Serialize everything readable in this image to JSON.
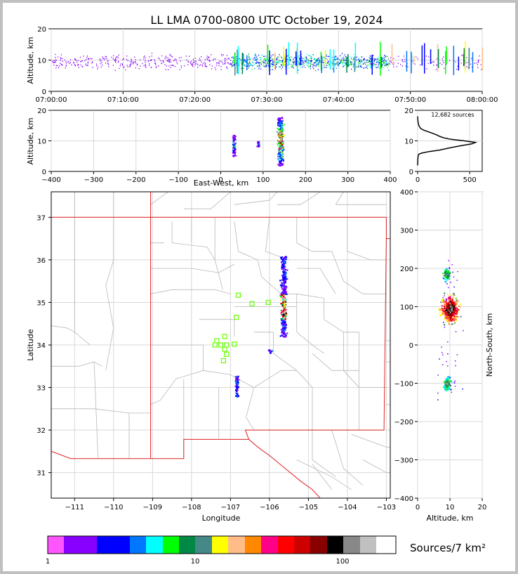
{
  "title": "LL LMA 0700-0800 UTC October 19, 2024",
  "colors": {
    "panel_border": "#000000",
    "grid": "#d8d8d8",
    "state_border": "#e02020",
    "county_line": "#b8b8b8",
    "station": "#66ff00",
    "histogram_line": "#000000"
  },
  "chart_data": [
    {
      "id": "time_height",
      "type": "scatter",
      "ylabel": "Altitude, km",
      "xlabel": "",
      "ylim": [
        0,
        20
      ],
      "yticks": [
        "0",
        "10",
        "20"
      ],
      "xtick_labels": [
        "07:00:00",
        "07:10:00",
        "07:20:00",
        "07:30:00",
        "07:40:00",
        "07:50:00",
        "08:00:00"
      ],
      "xlim_minutes": [
        0,
        60
      ],
      "grid": true,
      "note_density": "sources 0700-0800 UTC; densest 07:25-07:47 at 7-14 km; sparse bursts 07:48-08:00"
    },
    {
      "id": "east_west_height",
      "type": "scatter",
      "xlabel": "East-West, km",
      "ylabel": "Altitude, km",
      "xlim": [
        -400,
        400
      ],
      "ylim": [
        0,
        20
      ],
      "xticks": [
        "−400",
        "−300",
        "−200",
        "−100",
        "0",
        "100",
        "200",
        "300",
        "400"
      ],
      "yticks": [
        "0",
        "10",
        "20"
      ],
      "clusters": [
        {
          "x_km": 30,
          "alt_range": [
            5,
            12
          ]
        },
        {
          "x_km": 88,
          "alt_range": [
            8,
            10
          ]
        },
        {
          "x_km": 140,
          "alt_range": [
            2,
            18
          ]
        }
      ]
    },
    {
      "id": "altitude_histogram",
      "type": "line",
      "annotation": "12,682 sources",
      "xlim": [
        0,
        620
      ],
      "ylim": [
        0,
        20
      ],
      "xticks": [
        "0",
        "500"
      ],
      "yticks": [
        "0",
        "10",
        "20"
      ],
      "profile": [
        {
          "alt": 2,
          "count": 0
        },
        {
          "alt": 4,
          "count": 2
        },
        {
          "alt": 5,
          "count": 5
        },
        {
          "alt": 5.6,
          "count": 10
        },
        {
          "alt": 6,
          "count": 40
        },
        {
          "alt": 6.5,
          "count": 110
        },
        {
          "alt": 7,
          "count": 210
        },
        {
          "alt": 7.5,
          "count": 280
        },
        {
          "alt": 8,
          "count": 350
        },
        {
          "alt": 8.5,
          "count": 430
        },
        {
          "alt": 9,
          "count": 520
        },
        {
          "alt": 9.5,
          "count": 555
        },
        {
          "alt": 10,
          "count": 450
        },
        {
          "alt": 10.5,
          "count": 320
        },
        {
          "alt": 11,
          "count": 250
        },
        {
          "alt": 11.5,
          "count": 210
        },
        {
          "alt": 12,
          "count": 180
        },
        {
          "alt": 12.5,
          "count": 140
        },
        {
          "alt": 13,
          "count": 100
        },
        {
          "alt": 13.5,
          "count": 60
        },
        {
          "alt": 14,
          "count": 30
        },
        {
          "alt": 15,
          "count": 12
        },
        {
          "alt": 16,
          "count": 5
        },
        {
          "alt": 17,
          "count": 2
        },
        {
          "alt": 18,
          "count": 0
        }
      ]
    },
    {
      "id": "plan_view",
      "type": "scatter",
      "xlabel": "Longitude",
      "ylabel": "Latitude",
      "xlim": [
        -111.6,
        -102.9
      ],
      "ylim": [
        30.4,
        37.6
      ],
      "xticks": [
        "−111",
        "−110",
        "−109",
        "−108",
        "−107",
        "−106",
        "−105",
        "−104",
        "−103"
      ],
      "yticks": [
        "31",
        "32",
        "33",
        "34",
        "35",
        "36",
        "37"
      ],
      "clusters": [
        {
          "lon": -105.65,
          "lat_range": [
            34.2,
            36.1
          ],
          "core_lat": [
            34.6,
            35.2
          ]
        },
        {
          "lon": -106.85,
          "lat_range": [
            32.8,
            33.3
          ]
        },
        {
          "lon": -106.0,
          "lat_range": [
            33.8,
            33.9
          ]
        }
      ],
      "stations": [
        {
          "lon": -106.8,
          "lat": 35.17
        },
        {
          "lon": -106.45,
          "lat": 34.97
        },
        {
          "lon": -106.03,
          "lat": 35.0
        },
        {
          "lon": -106.85,
          "lat": 34.65
        },
        {
          "lon": -107.15,
          "lat": 34.2
        },
        {
          "lon": -107.35,
          "lat": 34.1
        },
        {
          "lon": -107.4,
          "lat": 34.0
        },
        {
          "lon": -107.25,
          "lat": 34.0
        },
        {
          "lon": -107.1,
          "lat": 34.0
        },
        {
          "lon": -106.9,
          "lat": 34.02
        },
        {
          "lon": -107.15,
          "lat": 33.9
        },
        {
          "lon": -107.1,
          "lat": 33.78
        },
        {
          "lon": -107.18,
          "lat": 33.63
        }
      ]
    },
    {
      "id": "north_south_height",
      "type": "scatter",
      "xlabel": "Altitude, km",
      "ylabel": "North-South, km",
      "xlim": [
        0,
        20
      ],
      "ylim": [
        -400,
        400
      ],
      "xticks": [
        "0",
        "10",
        "20"
      ],
      "yticks": [
        "−400",
        "−300",
        "−200",
        "−100",
        "0",
        "100",
        "200",
        "300",
        "400"
      ],
      "clusters": [
        {
          "alt": 9,
          "ns_km": 185,
          "spread": 20
        },
        {
          "alt": 10,
          "ns_km": 95,
          "spread": 50
        },
        {
          "alt": 9,
          "ns_km": -100,
          "spread": 25
        }
      ]
    },
    {
      "id": "colorbar",
      "type": "heatmap",
      "label": "Sources/7 km²",
      "tick_labels": [
        "1",
        "10",
        "100"
      ],
      "colors": [
        "#ff55ff",
        "#8800ff",
        "#8800ff",
        "#0000ff",
        "#0000ff",
        "#0077ff",
        "#00ffff",
        "#00ff00",
        "#008844",
        "#448888",
        "#ffff00",
        "#ffbb88",
        "#ff8800",
        "#ff0088",
        "#ff0000",
        "#cc0000",
        "#880000",
        "#000000",
        "#888888",
        "#c0c0c0",
        "#ffffff"
      ]
    }
  ]
}
